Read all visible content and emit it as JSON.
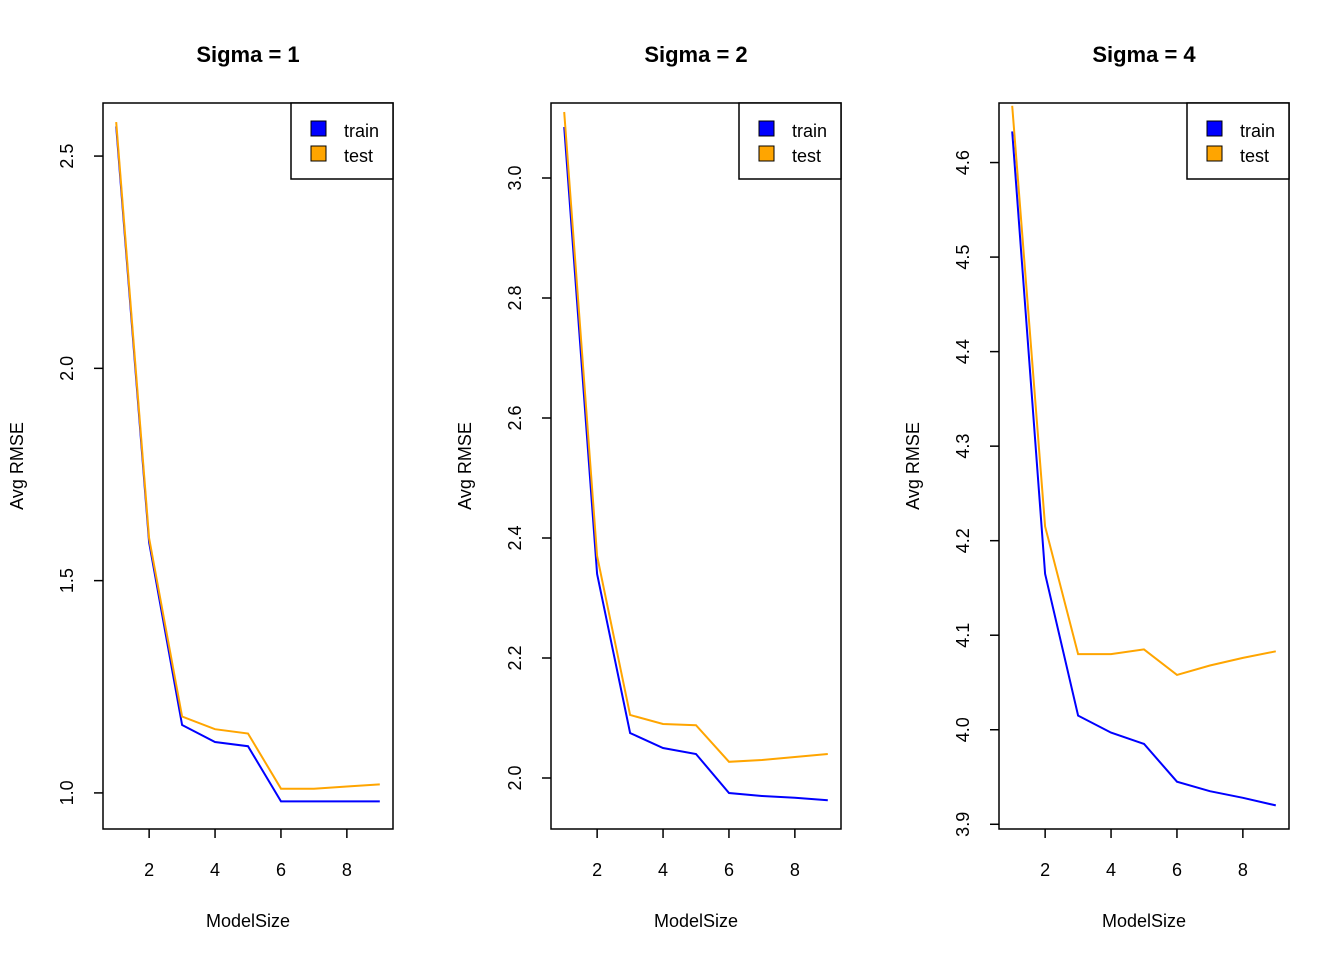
{
  "colors": {
    "train": "#0000FF",
    "test": "#FFA500"
  },
  "chart_data": [
    {
      "type": "line",
      "title": "Sigma = 1",
      "xlabel": "ModelSize",
      "ylabel": "Avg RMSE",
      "x": [
        1,
        2,
        3,
        4,
        5,
        6,
        7,
        8,
        9
      ],
      "xticks": [
        "2",
        "4",
        "6",
        "8"
      ],
      "yticks": [
        "1.0",
        "1.5",
        "2.0",
        "2.5"
      ],
      "xlim": [
        0.6,
        9.4
      ],
      "ylim": [
        0.915,
        2.625
      ],
      "grid": false,
      "legend": {
        "position": "top-right",
        "entries": [
          "train",
          "test"
        ]
      },
      "series": [
        {
          "name": "train",
          "values": [
            2.57,
            1.59,
            1.16,
            1.12,
            1.11,
            0.98,
            0.98,
            0.98,
            0.98
          ]
        },
        {
          "name": "test",
          "values": [
            2.58,
            1.6,
            1.18,
            1.15,
            1.14,
            1.01,
            1.01,
            1.015,
            1.02
          ]
        }
      ]
    },
    {
      "type": "line",
      "title": "Sigma = 2",
      "xlabel": "ModelSize",
      "ylabel": "Avg RMSE",
      "x": [
        1,
        2,
        3,
        4,
        5,
        6,
        7,
        8,
        9
      ],
      "xticks": [
        "2",
        "4",
        "6",
        "8"
      ],
      "yticks": [
        "2.0",
        "2.2",
        "2.4",
        "2.6",
        "2.8",
        "3.0"
      ],
      "xlim": [
        0.6,
        9.4
      ],
      "ylim": [
        1.915,
        3.125
      ],
      "grid": false,
      "legend": {
        "position": "top-right",
        "entries": [
          "train",
          "test"
        ]
      },
      "series": [
        {
          "name": "train",
          "values": [
            3.085,
            2.34,
            2.075,
            2.05,
            2.04,
            1.975,
            1.97,
            1.967,
            1.963
          ]
        },
        {
          "name": "test",
          "values": [
            3.11,
            2.37,
            2.105,
            2.09,
            2.088,
            2.027,
            2.03,
            2.035,
            2.04
          ]
        }
      ]
    },
    {
      "type": "line",
      "title": "Sigma = 4",
      "xlabel": "ModelSize",
      "ylabel": "Avg RMSE",
      "x": [
        1,
        2,
        3,
        4,
        5,
        6,
        7,
        8,
        9
      ],
      "xticks": [
        "2",
        "4",
        "6",
        "8"
      ],
      "yticks": [
        "3.9",
        "4.0",
        "4.1",
        "4.2",
        "4.3",
        "4.4",
        "4.5",
        "4.6"
      ],
      "xlim": [
        0.6,
        9.4
      ],
      "ylim": [
        3.895,
        4.663
      ],
      "grid": false,
      "legend": {
        "position": "top-right",
        "entries": [
          "train",
          "test"
        ]
      },
      "series": [
        {
          "name": "train",
          "values": [
            4.633,
            4.165,
            4.015,
            3.997,
            3.985,
            3.945,
            3.935,
            3.928,
            3.92
          ]
        },
        {
          "name": "test",
          "values": [
            4.66,
            4.215,
            4.08,
            4.08,
            4.085,
            4.058,
            4.068,
            4.076,
            4.083
          ]
        }
      ]
    }
  ]
}
